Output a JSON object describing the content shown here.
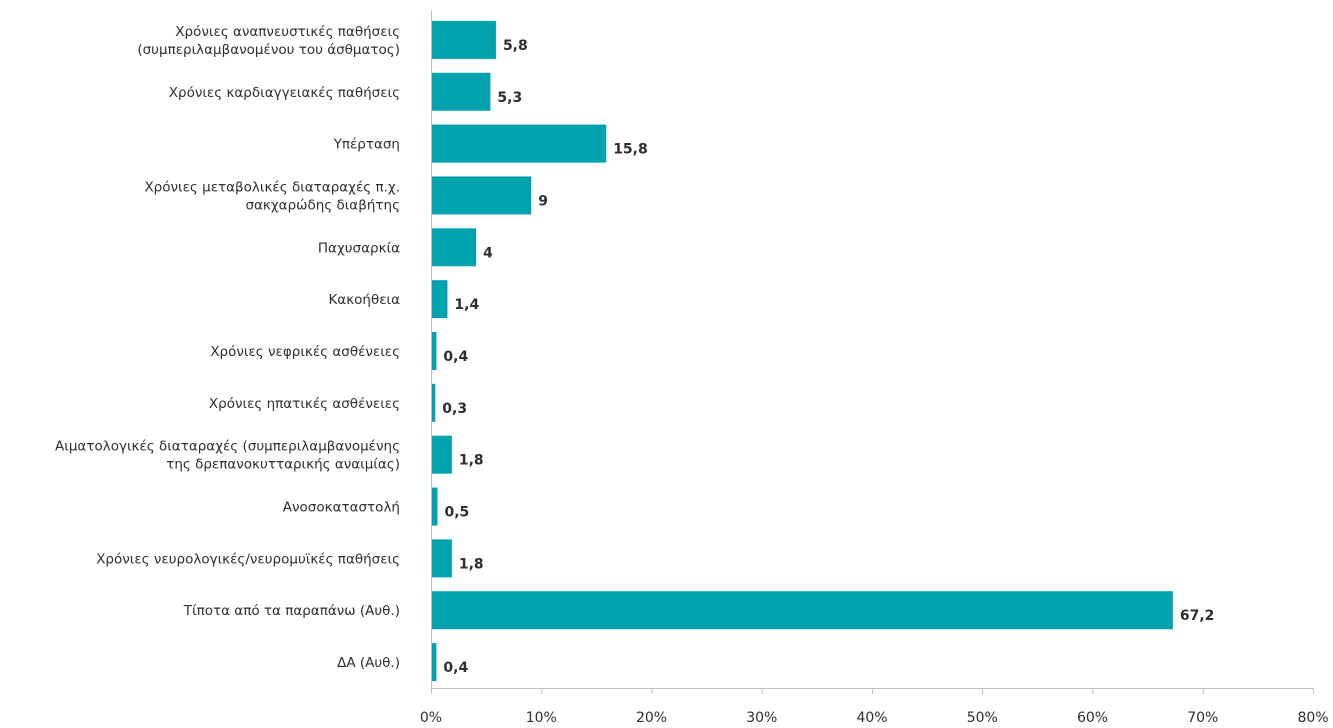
{
  "chart_data": {
    "type": "bar",
    "orientation": "horizontal",
    "bar_color": "#00a3ad",
    "xlim": [
      0,
      80
    ],
    "x_ticks": [
      "0%",
      "10%",
      "20%",
      "30%",
      "40%",
      "50%",
      "60%",
      "70%",
      "80%"
    ],
    "x_tick_values": [
      0,
      10,
      20,
      30,
      40,
      50,
      60,
      70,
      80
    ],
    "grid": false,
    "categories": [
      [
        "Χρόνιες αναπνευστικές παθήσεις",
        "(συμπεριλαμβανομένου του άσθματος)"
      ],
      [
        "Χρόνιες καρδιαγγειακές παθήσεις"
      ],
      [
        "Υπέρταση"
      ],
      [
        "Χρόνιες μεταβολικές διαταραχές π.χ.",
        "σακχαρώδης διαβήτης"
      ],
      [
        "Παχυσαρκία"
      ],
      [
        "Κακοήθεια"
      ],
      [
        "Χρόνιες νεφρικές ασθένειες"
      ],
      [
        "Χρόνιες ηπατικές ασθένειες"
      ],
      [
        "Αιματολογικές διαταραχές (συμπεριλαμβανομένης",
        "της δρεπανοκυτταρικής αναιμίας)"
      ],
      [
        "Ανοσοκαταστολή"
      ],
      [
        "Χρόνιες νευρολογικές/νευρομυϊκές παθήσεις"
      ],
      [
        "Τίποτα από τα παραπάνω (Αυθ.)"
      ],
      [
        "ΔΑ (Αυθ.)"
      ]
    ],
    "values": [
      5.8,
      5.3,
      15.8,
      9,
      4,
      1.4,
      0.4,
      0.3,
      1.8,
      0.5,
      1.8,
      67.2,
      0.4
    ],
    "value_labels": [
      "5,8",
      "5,3",
      "15,8",
      "9",
      "4",
      "1,4",
      "0,4",
      "0,3",
      "1,8",
      "0,5",
      "1,8",
      "67,2",
      "0,4"
    ]
  }
}
